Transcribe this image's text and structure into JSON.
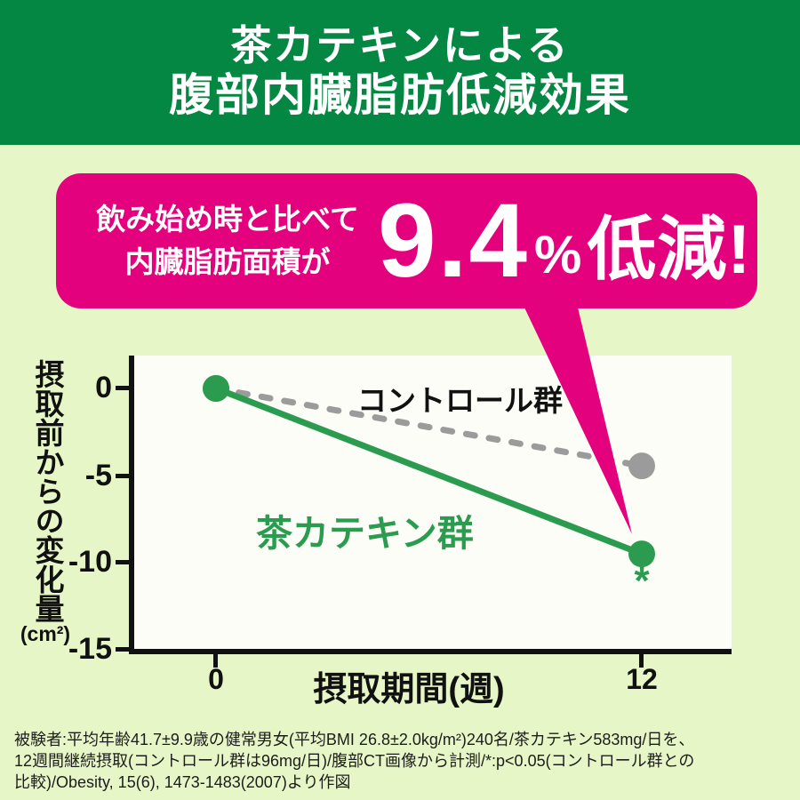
{
  "colors": {
    "header_bg": "#048742",
    "page_bg": "#e7f6c6",
    "callout_bg": "#e4017d",
    "plot_bg": "#fcfdf6",
    "axis": "#111111",
    "catechin_green": "#2b9c4f",
    "control_gray": "#9b9b9b",
    "text_white": "#ffffff"
  },
  "header": {
    "title_line1": "茶カテキンによる",
    "title_line2": "腹部内臓脂肪低減効果"
  },
  "callout": {
    "line1": "飲み始め時と比べて",
    "line2": "内臓脂肪面積が",
    "value": "9.4",
    "unit": "%",
    "suffix": "低減!"
  },
  "chart_data": {
    "type": "line",
    "title": "",
    "xlabel": "摂取期間(週)",
    "ylabel": "摂取前からの変化量",
    "ylabel_unit": "(cm²)",
    "x": [
      0,
      12
    ],
    "xtick_labels": [
      "0",
      "12"
    ],
    "yticks": [
      0,
      -5,
      -10,
      -15
    ],
    "ytick_labels": [
      "0",
      "-5",
      "-10",
      "-15"
    ],
    "xlim": [
      -2.5,
      14.5
    ],
    "ylim": [
      -15.3,
      1.9
    ],
    "grid": false,
    "legend_position": "inline-labels",
    "series": [
      {
        "name": "コントロール群",
        "values": [
          0,
          -4.4
        ],
        "color": "#9b9b9b",
        "line_style": "dashed",
        "marker": "circle"
      },
      {
        "name": "茶カテキン群",
        "values": [
          0,
          -9.4
        ],
        "color": "#2b9c4f",
        "line_style": "solid",
        "marker": "circle",
        "significance_marker": "*"
      }
    ]
  },
  "footnote": "被験者:平均年齢41.7±9.9歳の健常男女(平均BMI 26.8±2.0kg/m²)240名/茶カテキン583mg/日を、\n12週間継続摂取(コントロール群は96mg/日)/腹部CT画像から計測/*:p<0.05(コントロール群との\n比較)/Obesity, 15(6), 1473-1483(2007)より作図"
}
